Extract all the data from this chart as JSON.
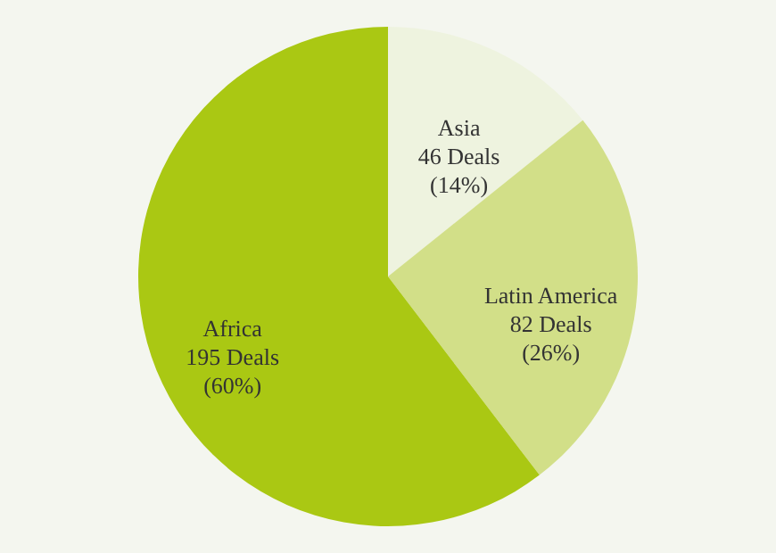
{
  "chart_data": {
    "type": "pie",
    "categories": [
      "Asia",
      "Latin America",
      "Africa"
    ],
    "values": [
      46,
      82,
      195
    ],
    "colors": [
      "#eef3df",
      "#d2df88",
      "#aac813"
    ],
    "value_labels": [
      "46 Deals\n(14%)",
      "82 Deals\n(26%)",
      "195 Deals\n(60%)"
    ],
    "legend": false
  }
}
